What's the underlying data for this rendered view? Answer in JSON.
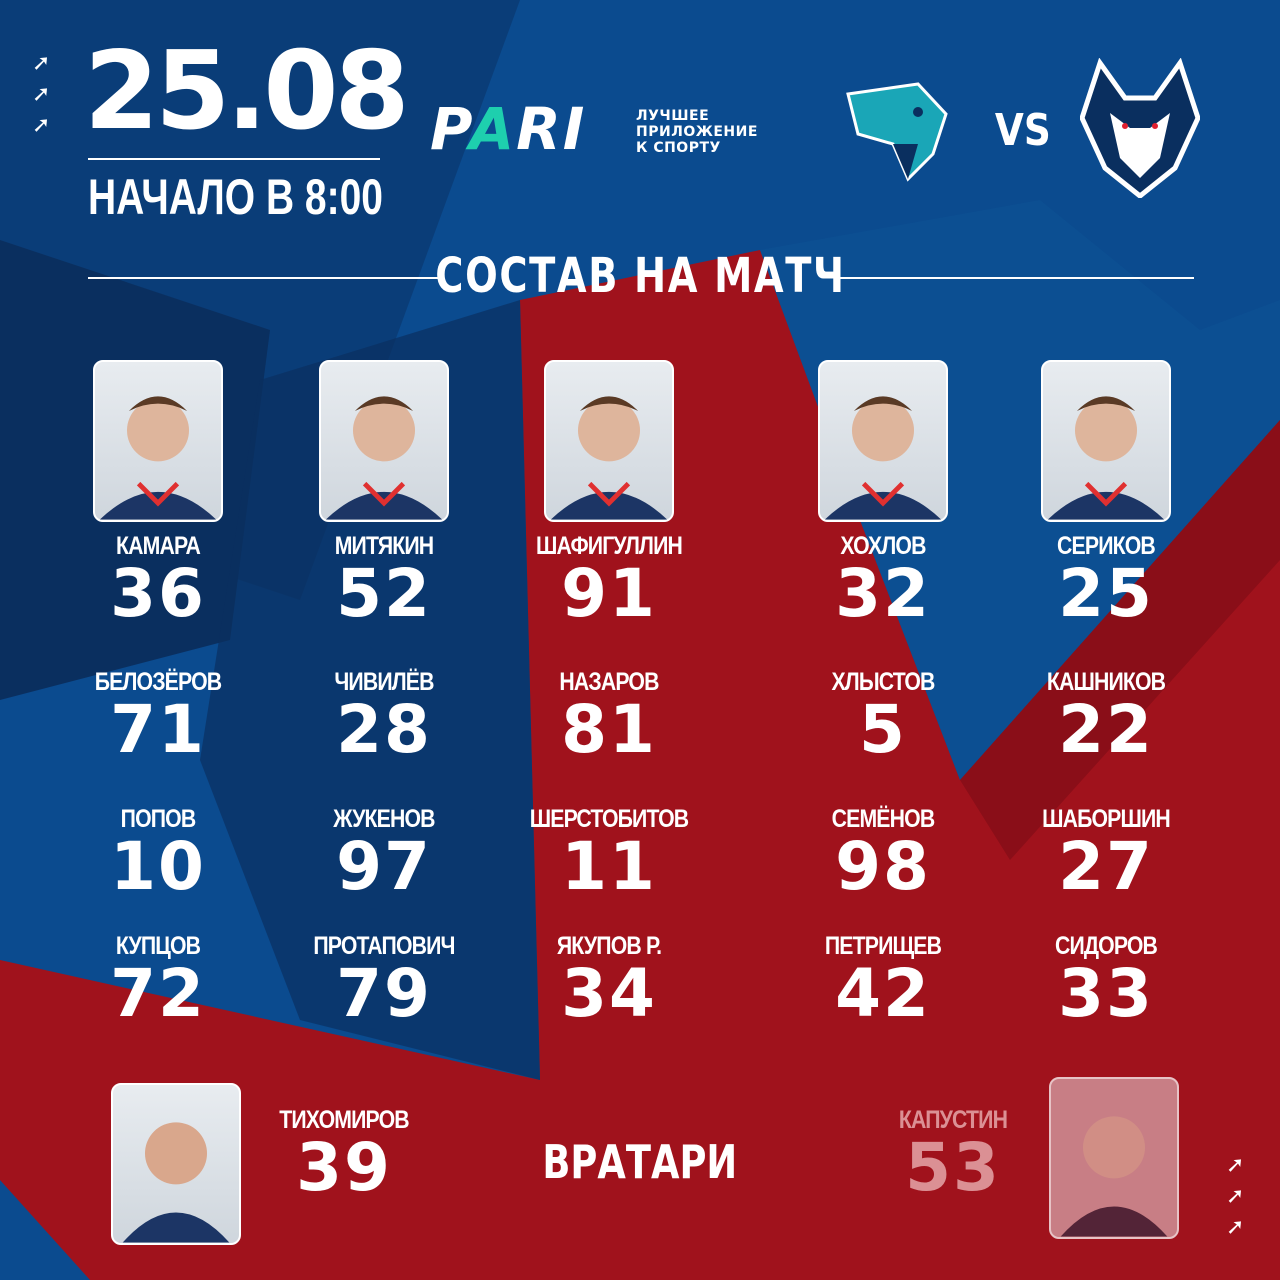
{
  "header": {
    "date": "25.08",
    "start_time": "НАЧАЛО В 8:00",
    "sponsor": {
      "brand_prefix": "P",
      "brand_accent": "A",
      "brand_suffix": "RI",
      "tagline": [
        "ЛУЧШЕЕ",
        "ПРИЛОЖЕНИЕ",
        "К СПОРТУ"
      ]
    },
    "vs": "VS",
    "home_logo": "snow-leopard-logo",
    "away_logo": "wolf-logo"
  },
  "section_title": "СОСТАВ НА МАТЧ",
  "rows": [
    [
      {
        "name": "КАМАРА",
        "number": "36"
      },
      {
        "name": "МИТЯКИН",
        "number": "52"
      },
      {
        "name": "ШАФИГУЛЛИН",
        "number": "91"
      },
      {
        "name": "ХОХЛОВ",
        "number": "32"
      },
      {
        "name": "СЕРИКОВ",
        "number": "25"
      }
    ],
    [
      {
        "name": "БЕЛОЗЁРОВ",
        "number": "71"
      },
      {
        "name": "ЧИВИЛЁВ",
        "number": "28"
      },
      {
        "name": "НАЗАРОВ",
        "number": "81"
      },
      {
        "name": "ХЛЫСТОВ",
        "number": "5"
      },
      {
        "name": "КАШНИКОВ",
        "number": "22"
      }
    ],
    [
      {
        "name": "ПОПОВ",
        "number": "10"
      },
      {
        "name": "ЖУКЕНОВ",
        "number": "97"
      },
      {
        "name": "ШЕРСТОБИТОВ",
        "number": "11"
      },
      {
        "name": "СЕМЁНОВ",
        "number": "98"
      },
      {
        "name": "ШАБОРШИН",
        "number": "27"
      }
    ],
    [
      {
        "name": "КУПЦОВ",
        "number": "72"
      },
      {
        "name": "ПРОТАПОВИЧ",
        "number": "79"
      },
      {
        "name": "ЯКУПОВ Р.",
        "number": "34"
      },
      {
        "name": "ПЕТРИЩЕВ",
        "number": "42"
      },
      {
        "name": "СИДОРОВ",
        "number": "33"
      }
    ]
  ],
  "goalies_title": "ВРАТАРИ",
  "goalies": [
    {
      "name": "ТИХОМИРОВ",
      "number": "39"
    },
    {
      "name": "КАПУСТИН",
      "number": "53",
      "faded": true
    }
  ],
  "colors": {
    "blue": "#0b4b8f",
    "dark_blue": "#0a2f5f",
    "red": "#a0121c",
    "accent": "#1ecfae"
  }
}
